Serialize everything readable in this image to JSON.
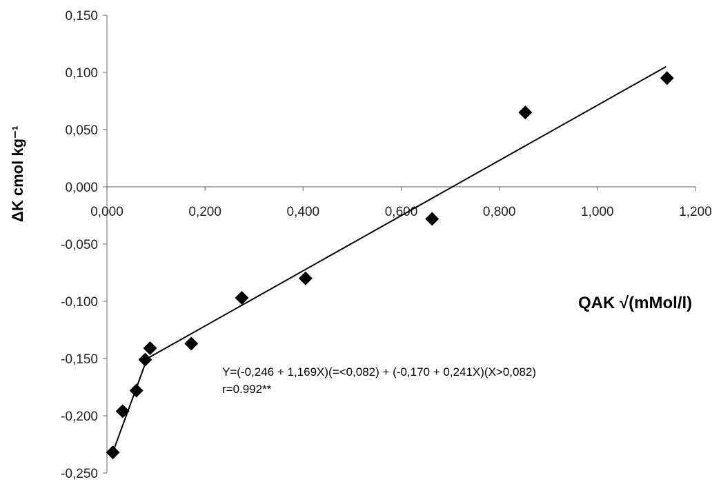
{
  "chart_data": {
    "type": "scatter",
    "title": "",
    "xlabel": "QAK √(mMol/l)",
    "ylabel": "ΔK cmol kg⁻¹",
    "xlim": [
      0,
      1.2
    ],
    "ylim": [
      -0.25,
      0.15
    ],
    "x_ticks": [
      "0,000",
      "0,200",
      "0,400",
      "0,600",
      "0,800",
      "1,000",
      "1,200"
    ],
    "y_ticks": [
      "0,150",
      "0,100",
      "0,050",
      "0,000",
      "-0,050",
      "-0,100",
      "-0,150",
      "-0,200",
      "-0,250"
    ],
    "grid": false,
    "legend": "none",
    "marker": "diamond",
    "marker_color": "#000000",
    "points": [
      {
        "x": 0.012,
        "y": -0.232
      },
      {
        "x": 0.032,
        "y": -0.196
      },
      {
        "x": 0.06,
        "y": -0.178
      },
      {
        "x": 0.078,
        "y": -0.151
      },
      {
        "x": 0.088,
        "y": -0.141
      },
      {
        "x": 0.172,
        "y": -0.137
      },
      {
        "x": 0.275,
        "y": -0.097
      },
      {
        "x": 0.405,
        "y": -0.08
      },
      {
        "x": 0.663,
        "y": -0.028
      },
      {
        "x": 0.853,
        "y": 0.065
      },
      {
        "x": 1.142,
        "y": 0.095
      }
    ],
    "fit_line": [
      {
        "x": 0.012,
        "y": -0.232
      },
      {
        "x": 0.082,
        "y": -0.15
      },
      {
        "x": 1.14,
        "y": 0.105
      }
    ],
    "annotations": [
      "Y=(-0,246 + 1,169X)(=<0,082) +  (-0,170 + 0,241X)(X>0,082)",
      "r=0.992**"
    ]
  }
}
